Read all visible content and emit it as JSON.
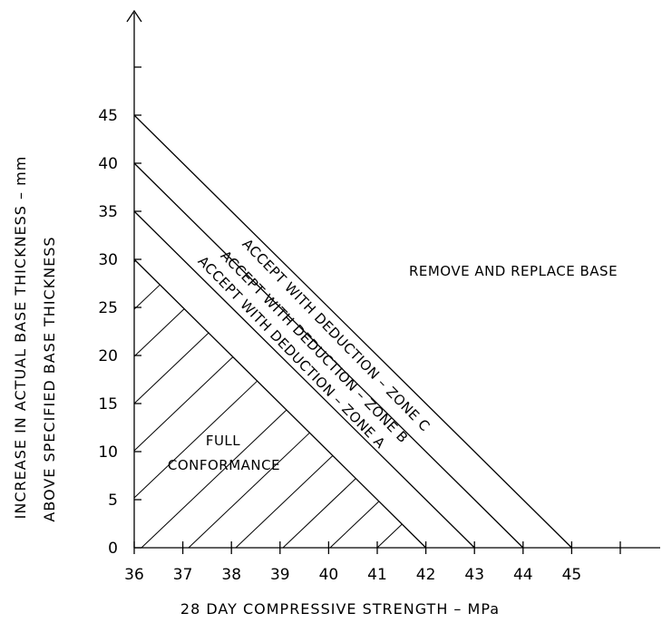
{
  "chart_data": {
    "type": "area",
    "xlabel": "28 DAY COMPRESSIVE STRENGTH  –  MPa",
    "ylabel_line1": "INCREASE IN ACTUAL BASE THICKNESS  –  mm",
    "ylabel_line2": "ABOVE SPECIFIED BASE THICKNESS",
    "x_ticks": [
      "36",
      "37",
      "38",
      "39",
      "40",
      "41",
      "42",
      "43",
      "44",
      "45"
    ],
    "y_ticks": [
      "0",
      "5",
      "10",
      "15",
      "20",
      "25",
      "30",
      "35",
      "40",
      "45"
    ],
    "xlim": [
      36,
      47
    ],
    "ylim": [
      0,
      50
    ],
    "grid": false,
    "boundaries": [
      {
        "name": "zone-a-outer",
        "points": [
          [
            36,
            30
          ],
          [
            42,
            0
          ]
        ]
      },
      {
        "name": "zone-b-outer",
        "points": [
          [
            36,
            35
          ],
          [
            43,
            0
          ]
        ]
      },
      {
        "name": "zone-c-outer",
        "points": [
          [
            36,
            40
          ],
          [
            44,
            0
          ]
        ]
      },
      {
        "name": "zone-c-limit",
        "points": [
          [
            36,
            45
          ],
          [
            45,
            0
          ]
        ]
      }
    ],
    "regions": [
      {
        "name": "full-conformance",
        "lines": [
          "FULL",
          "CONFORMANCE"
        ],
        "hatched": true
      },
      {
        "name": "zone-a",
        "label": "ACCEPT WITH DEDUCTION  –  ZONE A",
        "hatched": false
      },
      {
        "name": "zone-b",
        "label": "ACCEPT WITH DEDUCTION  –  ZONE B",
        "hatched": false
      },
      {
        "name": "zone-c",
        "label": "ACCEPT WITH DEDUCTION  –  ZONE C",
        "hatched": false
      },
      {
        "name": "remove-replace",
        "label": "REMOVE AND REPLACE BASE",
        "hatched": false
      }
    ]
  }
}
